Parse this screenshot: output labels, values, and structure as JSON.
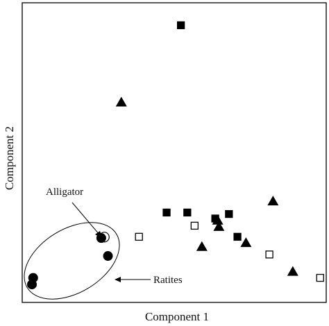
{
  "colors": {
    "ink": "#000000",
    "background": "#ffffff"
  },
  "chart_data": {
    "type": "scatter",
    "title": "",
    "xlabel": "Component 1",
    "ylabel": "Component 2",
    "grid": false,
    "ticks": false,
    "xlim": [
      0,
      100
    ],
    "ylim": [
      0,
      100
    ],
    "series": [
      {
        "marker": "filled-circle",
        "points": [
          {
            "x": 26.0,
            "y": 21.5
          },
          {
            "x": 28.2,
            "y": 15.5
          },
          {
            "x": 3.6,
            "y": 8.2
          },
          {
            "x": 3.2,
            "y": 6.0
          }
        ]
      },
      {
        "marker": "open-circle",
        "points": [
          {
            "x": 27.0,
            "y": 21.8
          }
        ]
      },
      {
        "marker": "filled-square",
        "points": [
          {
            "x": 52.2,
            "y": 92.5
          },
          {
            "x": 47.5,
            "y": 30.0
          },
          {
            "x": 54.3,
            "y": 30.0
          },
          {
            "x": 63.5,
            "y": 28.0
          },
          {
            "x": 68.0,
            "y": 29.5
          },
          {
            "x": 70.8,
            "y": 21.9
          }
        ]
      },
      {
        "marker": "open-square",
        "points": [
          {
            "x": 38.4,
            "y": 21.9
          },
          {
            "x": 56.7,
            "y": 25.6
          },
          {
            "x": 81.3,
            "y": 16.0
          },
          {
            "x": 98.0,
            "y": 8.2
          }
        ]
      },
      {
        "marker": "filled-triangle",
        "points": [
          {
            "x": 32.6,
            "y": 67.0
          },
          {
            "x": 64.3,
            "y": 27.6
          },
          {
            "x": 64.7,
            "y": 25.5
          },
          {
            "x": 59.1,
            "y": 18.8
          },
          {
            "x": 73.6,
            "y": 20.1
          },
          {
            "x": 82.5,
            "y": 34.0
          },
          {
            "x": 89.0,
            "y": 10.5
          }
        ]
      }
    ],
    "annotations": [
      {
        "text": "Alligator",
        "target": {
          "x": 27.0,
          "y": 21.8
        }
      },
      {
        "text": "Ratites",
        "target": "ellipse around filled circles"
      }
    ]
  }
}
